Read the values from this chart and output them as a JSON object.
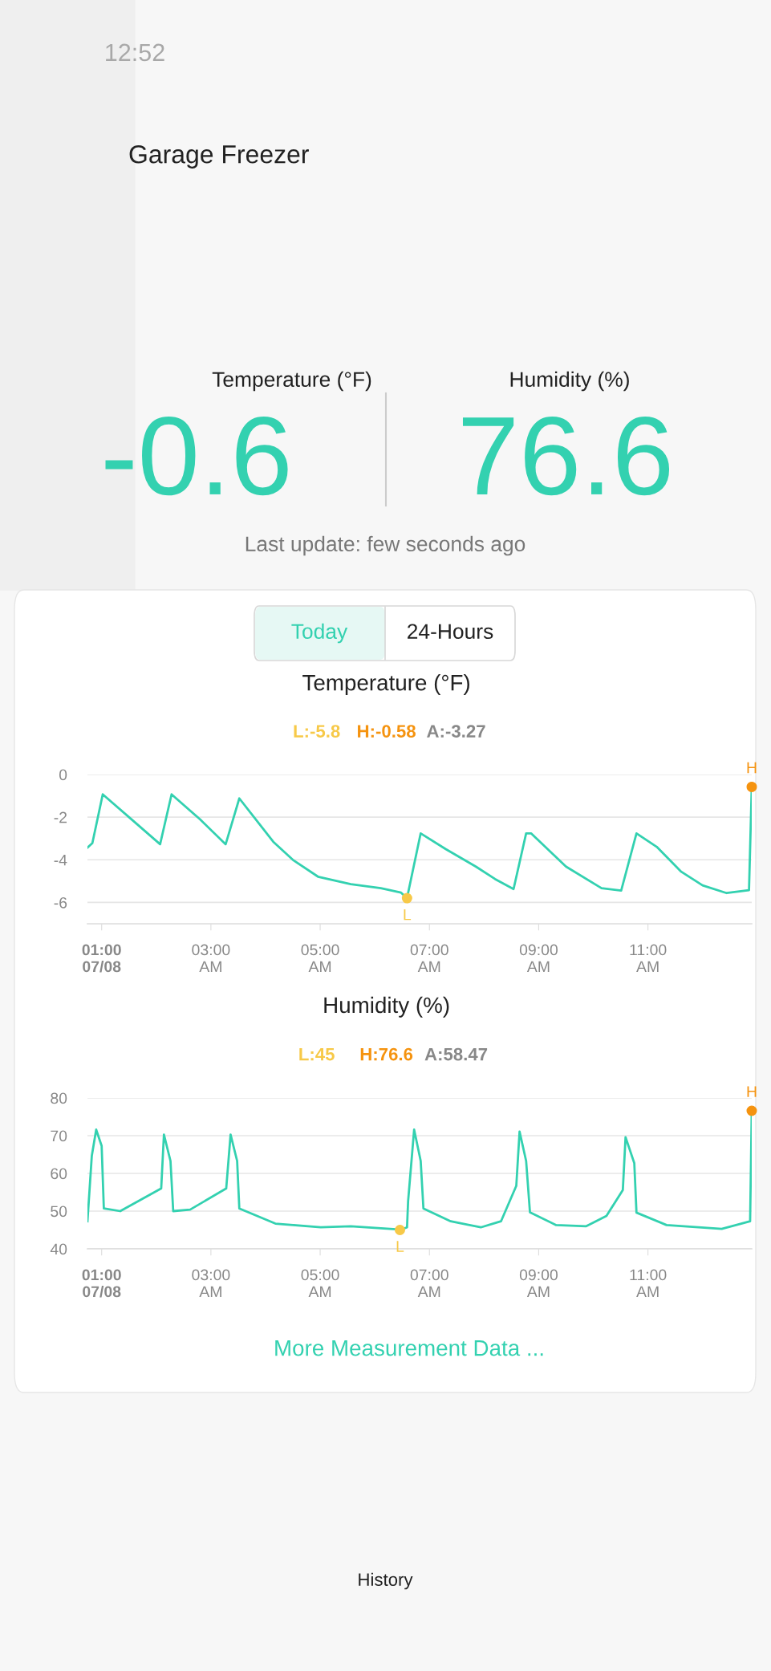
{
  "chart_data": [
    {
      "type": "other",
      "title": "Garage Freezer",
      "annotations": [
        "12:52",
        "Temperature (°F)",
        "-0.6",
        "Humidity (%)",
        "76.6",
        "Last update: few seconds ago",
        "Today",
        "24-Hours",
        "More Measurement Data ...",
        "History"
      ]
    },
    {
      "type": "line",
      "title": "Temperature (°F)",
      "annotations": [
        "L:-5.8",
        "H:-0.58",
        "A:-3.27",
        {
          "text": "L",
          "x": 6.59,
          "y": -5.8
        },
        {
          "text": "H",
          "x": 12.9,
          "y": -0.58
        }
      ],
      "x": [
        0.74,
        0.83,
        1.02,
        1.5,
        2.07,
        2.28,
        2.8,
        3.27,
        3.52,
        4.14,
        4.5,
        4.96,
        5.56,
        6.11,
        6.48,
        6.59,
        6.84,
        7.3,
        7.85,
        8.2,
        8.54,
        8.77,
        8.86,
        9.5,
        10.15,
        10.51,
        10.79,
        11.16,
        11.61,
        12.0,
        12.44,
        12.85,
        12.9
      ],
      "series": [
        {
          "color": "#33d1b0",
          "values": [
            -3.43,
            -3.22,
            -0.93,
            -2.0,
            -3.27,
            -0.93,
            -2.1,
            -3.27,
            -1.12,
            -3.15,
            -4.0,
            -4.79,
            -5.14,
            -5.33,
            -5.54,
            -5.79,
            -2.76,
            -3.5,
            -4.32,
            -4.9,
            -5.37,
            -2.76,
            -2.76,
            -4.32,
            -5.33,
            -5.44,
            -2.76,
            -3.39,
            -4.56,
            -5.2,
            -5.56,
            -5.42,
            -0.58
          ]
        }
      ],
      "ylim": [
        -7,
        0
      ],
      "yticks": [
        0,
        -2,
        -4,
        -6
      ],
      "xlim": [
        0.74,
        12.9
      ],
      "xticks": [
        {
          "value": 1,
          "label": "01:00\n07/08"
        },
        {
          "value": 3,
          "label": "03:00\nAM"
        },
        {
          "value": 5,
          "label": "05:00\nAM"
        },
        {
          "value": 7,
          "label": "07:00\nAM"
        },
        {
          "value": 9,
          "label": "09:00\nAM"
        },
        {
          "value": 11,
          "label": "11:00\nAM"
        }
      ],
      "grid": "y"
    },
    {
      "type": "line",
      "title": "Humidity (%)",
      "annotations": [
        "L:45",
        "H:76.6",
        "A:58.47",
        {
          "text": "L",
          "x": 6.46,
          "y": 45
        },
        {
          "text": "H",
          "x": 12.9,
          "y": 76.6
        }
      ],
      "x": [
        0.74,
        0.82,
        0.9,
        1.0,
        1.04,
        1.34,
        2.09,
        2.14,
        2.26,
        2.31,
        2.62,
        3.28,
        3.36,
        3.48,
        3.52,
        4.18,
        5.01,
        5.56,
        6.39,
        6.46,
        6.59,
        6.61,
        6.72,
        6.84,
        6.89,
        7.39,
        7.94,
        8.31,
        8.59,
        8.65,
        8.77,
        8.84,
        9.32,
        9.87,
        10.24,
        10.54,
        10.59,
        10.75,
        10.79,
        11.34,
        12.35,
        12.87,
        12.9
      ],
      "series": [
        {
          "color": "#33d1b0",
          "values": [
            47.3,
            64.7,
            71.6,
            67.3,
            50.7,
            50.0,
            56.0,
            70.3,
            63.3,
            50.0,
            50.4,
            56.0,
            70.3,
            63.3,
            50.7,
            46.7,
            45.7,
            46.0,
            45.2,
            45.0,
            45.7,
            52.7,
            71.6,
            63.3,
            50.7,
            47.3,
            45.7,
            47.3,
            56.7,
            71.1,
            63.3,
            49.7,
            46.3,
            46.0,
            48.7,
            55.6,
            69.6,
            62.7,
            49.6,
            46.3,
            45.3,
            47.3,
            76.6
          ]
        }
      ],
      "ylim": [
        40,
        80
      ],
      "yticks": [
        40,
        50,
        60,
        70,
        80
      ],
      "xlim": [
        0.74,
        12.9
      ],
      "xticks": [
        {
          "value": 1,
          "label": "01:00\n07/08"
        },
        {
          "value": 3,
          "label": "03:00\nAM"
        },
        {
          "value": 5,
          "label": "05:00\nAM"
        },
        {
          "value": 7,
          "label": "07:00\nAM"
        },
        {
          "value": 9,
          "label": "09:00\nAM"
        },
        {
          "value": 11,
          "label": "11:00\nAM"
        }
      ],
      "grid": "y"
    }
  ]
}
